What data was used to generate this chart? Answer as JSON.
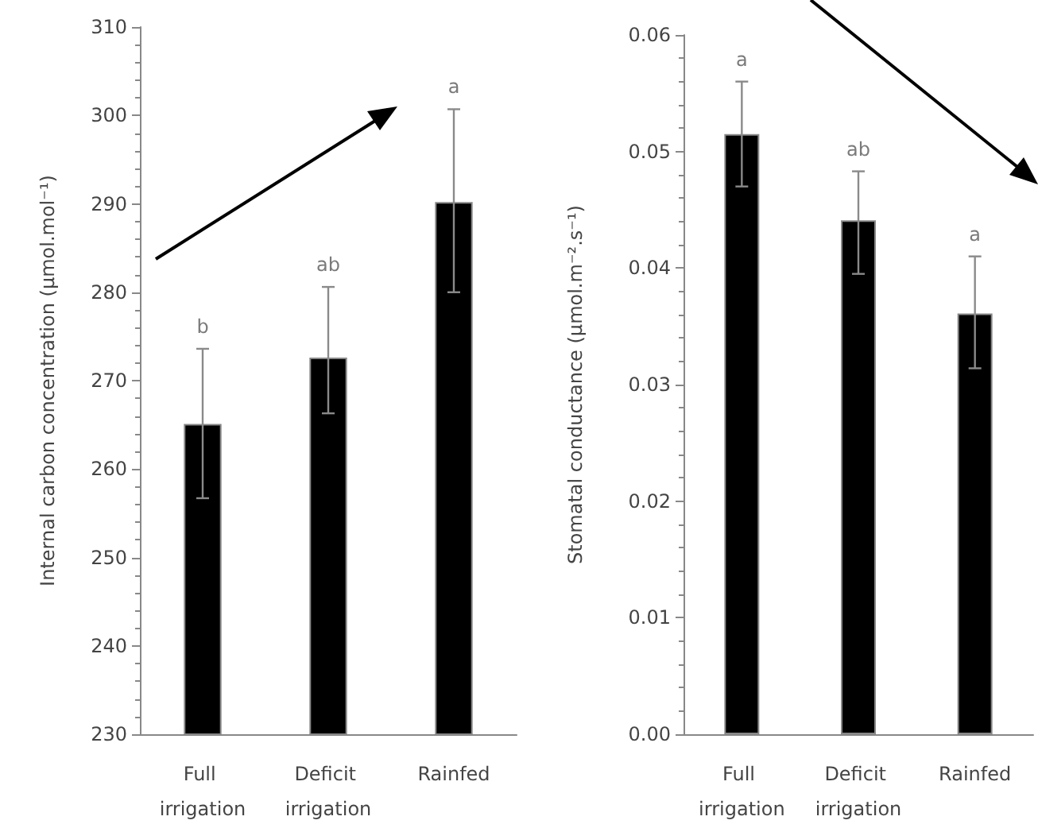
{
  "chart_data": [
    {
      "type": "bar",
      "categories": [
        "Full irrigation",
        "Deficit irrigation",
        "Rainfed"
      ],
      "values": [
        265.1,
        272.6,
        290.2
      ],
      "color": "#000000",
      "errors": [
        [
          256.7,
          273.6
        ],
        [
          266.3,
          280.6
        ],
        [
          280.0,
          300.7
        ]
      ],
      "ylabel": "Internal carbon concentration (µmol.mol⁻¹)",
      "ylim": [
        230,
        310
      ],
      "yticks": [
        230,
        240,
        250,
        260,
        270,
        280,
        290,
        300,
        310
      ],
      "grid": false,
      "annotations": [
        "b",
        "ab",
        "a"
      ]
    },
    {
      "type": "bar",
      "categories": [
        "Full irrigation",
        "Deficit irrigation",
        "Rainfed"
      ],
      "values": [
        0.0515,
        0.0441,
        0.0361
      ],
      "color": "#000000",
      "errors": [
        [
          0.047,
          0.056
        ],
        [
          0.0395,
          0.0483
        ],
        [
          0.0314,
          0.041
        ]
      ],
      "ylabel": "Stomatal conductance (µmol.m⁻².s⁻¹)",
      "ylim": [
        0,
        0.06
      ],
      "yticks": [
        {
          "value": 0,
          "label": "0.00"
        },
        {
          "value": 0.01,
          "label": "0.01"
        },
        {
          "value": 0.02,
          "label": "0.02"
        },
        {
          "value": 0.03,
          "label": "0.03"
        },
        {
          "value": 0.04,
          "label": "0.04"
        },
        {
          "value": 0.05,
          "label": "0.05"
        },
        {
          "value": 0.06,
          "label": "0.06"
        }
      ],
      "grid": false,
      "annotations": [
        "a",
        "ab",
        "a"
      ]
    }
  ]
}
